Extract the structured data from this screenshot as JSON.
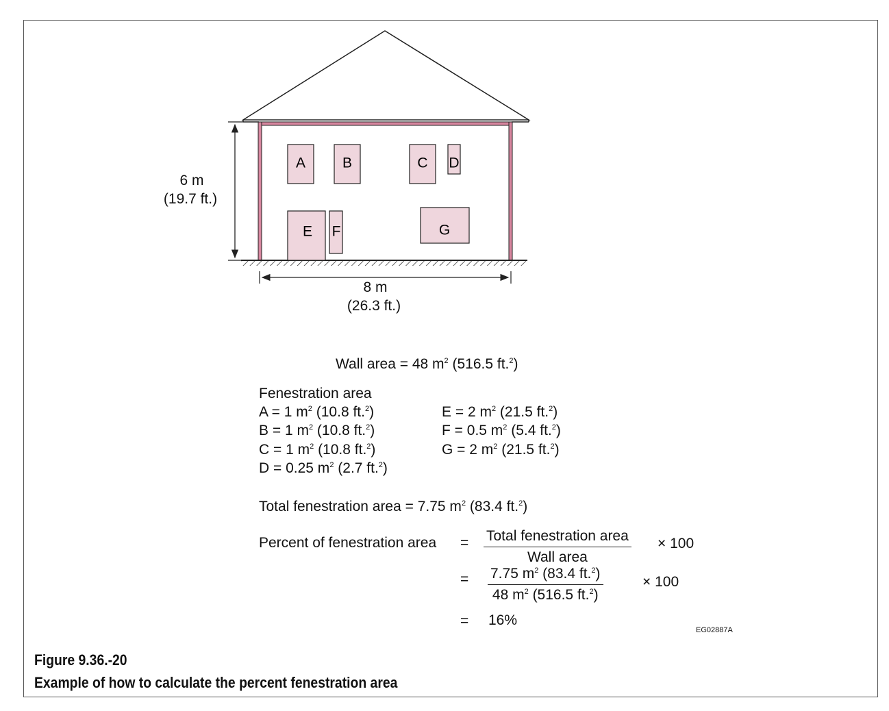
{
  "diagram": {
    "windows": [
      {
        "label": "A"
      },
      {
        "label": "B"
      },
      {
        "label": "C"
      },
      {
        "label": "D"
      },
      {
        "label": "E"
      },
      {
        "label": "F"
      },
      {
        "label": "G"
      }
    ],
    "height_label": "6 m",
    "height_label_ft": "(19.7 ft.)",
    "width_label": "8 m",
    "width_label_ft": "(26.3 ft.)",
    "colors": {
      "wall_trim": "#d7869f",
      "window_fill": "#efd6dd",
      "line": "#222222"
    }
  },
  "wall_area": {
    "prefix": "Wall area = 48 m",
    "suffix": " (516.5 ft.",
    "close": ")"
  },
  "fenestration": {
    "heading": "Fenestration area",
    "left": [
      {
        "a": "A = 1 m",
        "b": " (10.8 ft.",
        "c": ")"
      },
      {
        "a": "B = 1 m",
        "b": " (10.8 ft.",
        "c": ")"
      },
      {
        "a": "C = 1 m",
        "b": " (10.8 ft.",
        "c": ")"
      },
      {
        "a": "D = 0.25 m",
        "b": " (2.7 ft.",
        "c": ")"
      }
    ],
    "right": [
      {
        "a": "E = 2 m",
        "b": " (21.5 ft.",
        "c": ")"
      },
      {
        "a": "F = 0.5 m",
        "b": " (5.4 ft.",
        "c": ")"
      },
      {
        "a": "G = 2 m",
        "b": " (21.5 ft.",
        "c": ")"
      }
    ]
  },
  "total": {
    "a": "Total fenestration area = 7.75 m",
    "b": " (83.4 ft.",
    "c": ")"
  },
  "percent": {
    "label": "Percent of fenestration area",
    "eq": "=",
    "frac1_num": "Total fenestration area",
    "frac1_den": "Wall area",
    "times": "× 100",
    "frac2_num": {
      "a": "7.75 m",
      "b": " (83.4 ft.",
      "c": ")"
    },
    "frac2_den": {
      "a": "48 m",
      "b": " (516.5 ft.",
      "c": ")"
    },
    "result": "16%"
  },
  "superscript": "2",
  "code": "EG02887A",
  "figure": {
    "number": "Figure 9.36.-20",
    "caption": "Example of how to calculate the percent fenestration area"
  }
}
